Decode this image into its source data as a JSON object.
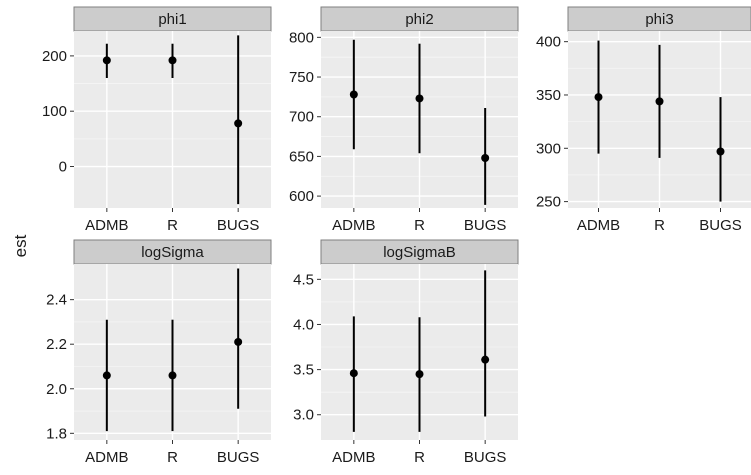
{
  "chart_data": {
    "type": "scatter",
    "subtype": "point-range facet grid",
    "ylabel": "est",
    "xlabel": "",
    "grid": true,
    "legend": "none",
    "colors": {
      "panel_background": "#ebebeb",
      "grid_major": "#ffffff",
      "grid_minor": "#f5f5f5",
      "strip_background": "#cccccc",
      "strip_border": "#7f7f7f",
      "marks": "#000000"
    },
    "categories": [
      "ADMB",
      "R",
      "BUGS"
    ],
    "facets": [
      {
        "name": "phi1",
        "ylim": [
          -75,
          245
        ],
        "yticks": [
          0,
          100,
          200
        ],
        "ytick_labels": [
          "0",
          "100",
          "200"
        ],
        "points": [
          {
            "x": "ADMB",
            "y": 192,
            "lower": 160,
            "upper": 222
          },
          {
            "x": "R",
            "y": 192,
            "lower": 160,
            "upper": 222
          },
          {
            "x": "BUGS",
            "y": 78,
            "lower": -68,
            "upper": 237
          }
        ]
      },
      {
        "name": "phi2",
        "ylim": [
          585,
          808
        ],
        "yticks": [
          600,
          650,
          700,
          750,
          800
        ],
        "ytick_labels": [
          "600",
          "650",
          "700",
          "750",
          "800"
        ],
        "points": [
          {
            "x": "ADMB",
            "y": 728,
            "lower": 659,
            "upper": 797
          },
          {
            "x": "R",
            "y": 723,
            "lower": 654,
            "upper": 792
          },
          {
            "x": "BUGS",
            "y": 648,
            "lower": 589,
            "upper": 711
          }
        ]
      },
      {
        "name": "phi3",
        "ylim": [
          244,
          410
        ],
        "yticks": [
          250,
          300,
          350,
          400
        ],
        "ytick_labels": [
          "250",
          "300",
          "350",
          "400"
        ],
        "points": [
          {
            "x": "ADMB",
            "y": 348,
            "lower": 295,
            "upper": 401
          },
          {
            "x": "R",
            "y": 344,
            "lower": 291,
            "upper": 397
          },
          {
            "x": "BUGS",
            "y": 297,
            "lower": 250,
            "upper": 348
          }
        ]
      },
      {
        "name": "logSigma",
        "ylim": [
          1.77,
          2.56
        ],
        "yticks": [
          1.8,
          2.0,
          2.2,
          2.4
        ],
        "ytick_labels": [
          "1.8",
          "2.0",
          "2.2",
          "2.4"
        ],
        "points": [
          {
            "x": "ADMB",
            "y": 2.06,
            "lower": 1.81,
            "upper": 2.31
          },
          {
            "x": "R",
            "y": 2.06,
            "lower": 1.81,
            "upper": 2.31
          },
          {
            "x": "BUGS",
            "y": 2.21,
            "lower": 1.91,
            "upper": 2.54
          }
        ]
      },
      {
        "name": "logSigmaB",
        "ylim": [
          2.72,
          4.67
        ],
        "yticks": [
          3.0,
          3.5,
          4.0,
          4.5
        ],
        "ytick_labels": [
          "3.0",
          "3.5",
          "4.0",
          "4.5"
        ],
        "points": [
          {
            "x": "ADMB",
            "y": 3.46,
            "lower": 2.81,
            "upper": 4.09
          },
          {
            "x": "R",
            "y": 3.45,
            "lower": 2.81,
            "upper": 4.08
          },
          {
            "x": "BUGS",
            "y": 3.61,
            "lower": 2.98,
            "upper": 4.6
          }
        ]
      }
    ]
  }
}
